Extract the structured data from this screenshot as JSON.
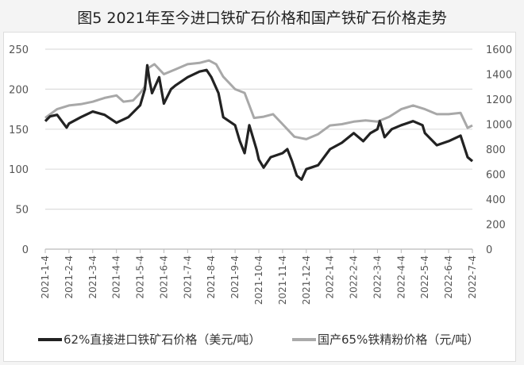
{
  "title": "图5  2021年至今进口铁矿石价格和国产铁矿石价格走势",
  "chart_data": {
    "type": "line",
    "title": "图5  2021年至今进口铁矿石价格和国产铁矿石价格走势",
    "x_unit": "months since 2021-1-4",
    "x_tick_labels": [
      "2021-1-4",
      "2021-2-4",
      "2021-3-4",
      "2021-4-4",
      "2021-5-4",
      "2021-6-4",
      "2021-7-4",
      "2021-8-4",
      "2021-9-4",
      "2021-10-4",
      "2021-11-4",
      "2021-12-4",
      "2022-1-4",
      "2022-2-4",
      "2022-3-4",
      "2022-4-4",
      "2022-5-4",
      "2022-6-4",
      "2022-7-4"
    ],
    "y_left": {
      "ticks": [
        "0",
        "50",
        "100",
        "150",
        "200",
        "250"
      ],
      "range": [
        0,
        250
      ]
    },
    "y_right": {
      "ticks": [
        "0",
        "200",
        "400",
        "600",
        "800",
        "1000",
        "1200",
        "1400",
        "1600"
      ],
      "range": [
        0,
        1600
      ]
    },
    "grid": true,
    "legend_position": "bottom",
    "series": [
      {
        "name": "62%直接进口铁矿石价格（美元/吨）",
        "axis": "left",
        "color": "#222222",
        "points": [
          [
            0,
            160
          ],
          [
            0.2,
            166
          ],
          [
            0.5,
            168
          ],
          [
            0.9,
            152
          ],
          [
            1,
            157
          ],
          [
            1.5,
            165
          ],
          [
            2,
            172
          ],
          [
            2.5,
            168
          ],
          [
            3,
            158
          ],
          [
            3.5,
            165
          ],
          [
            4,
            180
          ],
          [
            4.2,
            200
          ],
          [
            4.3,
            230
          ],
          [
            4.4,
            210
          ],
          [
            4.5,
            195
          ],
          [
            4.8,
            215
          ],
          [
            5,
            182
          ],
          [
            5.3,
            200
          ],
          [
            5.5,
            205
          ],
          [
            6,
            215
          ],
          [
            6.5,
            222
          ],
          [
            6.8,
            224
          ],
          [
            7,
            215
          ],
          [
            7.3,
            195
          ],
          [
            7.5,
            165
          ],
          [
            8,
            155
          ],
          [
            8.2,
            135
          ],
          [
            8.4,
            120
          ],
          [
            8.6,
            155
          ],
          [
            8.9,
            125
          ],
          [
            9,
            112
          ],
          [
            9.2,
            102
          ],
          [
            9.5,
            115
          ],
          [
            10,
            120
          ],
          [
            10.2,
            125
          ],
          [
            10.4,
            110
          ],
          [
            10.6,
            92
          ],
          [
            10.8,
            87
          ],
          [
            11,
            100
          ],
          [
            11.5,
            105
          ],
          [
            12,
            125
          ],
          [
            12.5,
            133
          ],
          [
            13,
            145
          ],
          [
            13.4,
            135
          ],
          [
            13.7,
            145
          ],
          [
            14,
            150
          ],
          [
            14.1,
            160
          ],
          [
            14.3,
            140
          ],
          [
            14.6,
            150
          ],
          [
            15,
            155
          ],
          [
            15.5,
            160
          ],
          [
            15.9,
            155
          ],
          [
            16,
            145
          ],
          [
            16.5,
            130
          ],
          [
            17,
            135
          ],
          [
            17.5,
            142
          ],
          [
            17.8,
            115
          ],
          [
            18,
            110
          ]
        ]
      },
      {
        "name": "国产65%铁精粉价格（元/吨）",
        "axis": "right",
        "color": "#a8a8a8",
        "points": [
          [
            0,
            1050
          ],
          [
            0.5,
            1120
          ],
          [
            1,
            1150
          ],
          [
            1.5,
            1160
          ],
          [
            2,
            1180
          ],
          [
            2.5,
            1210
          ],
          [
            3,
            1230
          ],
          [
            3.3,
            1180
          ],
          [
            3.7,
            1190
          ],
          [
            4,
            1250
          ],
          [
            4.2,
            1300
          ],
          [
            4.35,
            1450
          ],
          [
            4.6,
            1480
          ],
          [
            5,
            1400
          ],
          [
            5.5,
            1440
          ],
          [
            6,
            1480
          ],
          [
            6.5,
            1490
          ],
          [
            6.9,
            1510
          ],
          [
            7.2,
            1480
          ],
          [
            7.5,
            1380
          ],
          [
            8,
            1280
          ],
          [
            8.4,
            1250
          ],
          [
            8.8,
            1050
          ],
          [
            9.2,
            1060
          ],
          [
            9.6,
            1080
          ],
          [
            10,
            1000
          ],
          [
            10.5,
            900
          ],
          [
            11,
            880
          ],
          [
            11.5,
            920
          ],
          [
            12,
            990
          ],
          [
            12.5,
            1000
          ],
          [
            13,
            1020
          ],
          [
            13.5,
            1030
          ],
          [
            14,
            1020
          ],
          [
            14.5,
            1060
          ],
          [
            15,
            1120
          ],
          [
            15.5,
            1150
          ],
          [
            16,
            1120
          ],
          [
            16.5,
            1080
          ],
          [
            17,
            1080
          ],
          [
            17.5,
            1090
          ],
          [
            17.8,
            970
          ],
          [
            18,
            990
          ]
        ]
      }
    ]
  },
  "legend": {
    "black": "62%直接进口铁矿石价格（美元/吨）",
    "gray": "国产65%铁精粉价格（元/吨）"
  }
}
